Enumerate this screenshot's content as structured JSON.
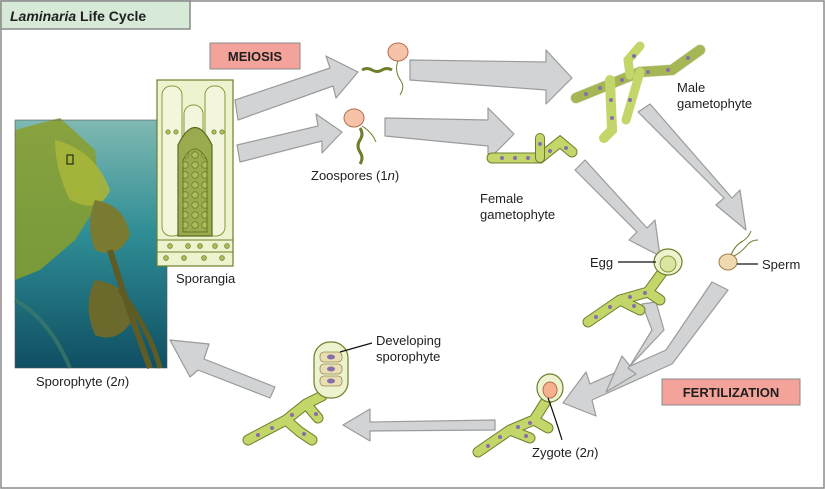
{
  "title": {
    "italic": "Laminaria",
    "rest": " Life Cycle"
  },
  "stages": {
    "meiosis": "MEIOSIS",
    "fertilization": "FERTILIZATION"
  },
  "labels": {
    "zoospores": {
      "prefix": "Zoospores (1",
      "ital": "n",
      "suffix": ")"
    },
    "male_1": "Male",
    "male_2": "gametophyte",
    "female_1": "Female",
    "female_2": "gametophyte",
    "egg": "Egg",
    "sperm": "Sperm",
    "zygote": {
      "prefix": "Zygote (2",
      "ital": "n",
      "suffix": ")"
    },
    "developing_1": "Developing",
    "developing_2": "sporophyte",
    "sporangia": "Sporangia",
    "sporophyte": {
      "prefix": "Sporophyte (2",
      "ital": "n",
      "suffix": ")"
    }
  },
  "colors": {
    "frame": "#8a8a8a",
    "title_bg": "#d6ead7",
    "stage_bg": "#f4a39b",
    "arrow_fill": "#d2d3d4",
    "arrow_stroke": "#9a9b9c",
    "alga": "#c2d66a",
    "alga_dark": "#6d7f2b",
    "cell_nucleus": "#8a6ea8",
    "sporangia_bg": "#eef3cf",
    "sporangium": "#9aaa4e",
    "spore_head": "#f7c3a8"
  }
}
